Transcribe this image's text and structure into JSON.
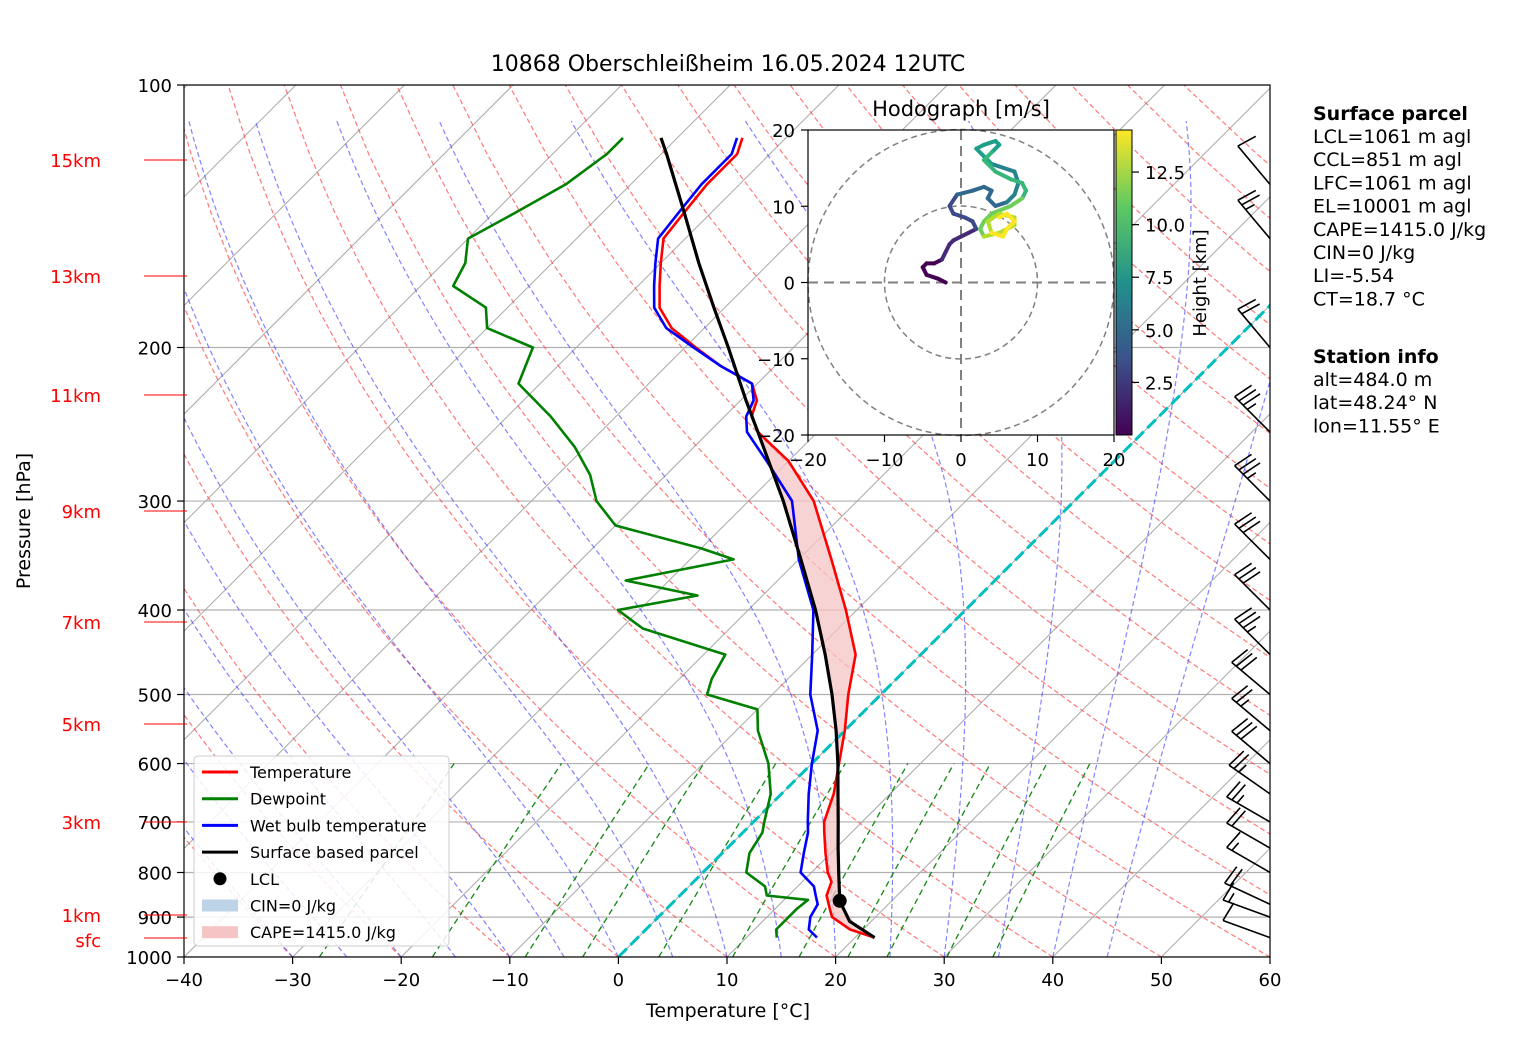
{
  "chart_data": [
    {
      "type": "line",
      "chart_kind": "skew-t log-p",
      "title": "10868 Oberschleißheim 16.05.2024 12UTC",
      "xlabel": "Temperature [°C]",
      "ylabel": "Pressure [hPa]",
      "xlim": [
        -40,
        60
      ],
      "ylim": [
        1000,
        100
      ],
      "y_scale": "log",
      "grid": true,
      "x_ticks": [
        "−40",
        "−30",
        "−20",
        "−10",
        "0",
        "10",
        "20",
        "30",
        "40",
        "50",
        "60"
      ],
      "y_ticks": [
        {
          "p": 100,
          "label": "100"
        },
        {
          "p": 200,
          "label": "200"
        },
        {
          "p": 300,
          "label": "300"
        },
        {
          "p": 400,
          "label": "400"
        },
        {
          "p": 500,
          "label": "500"
        },
        {
          "p": 600,
          "label": "600"
        },
        {
          "p": 700,
          "label": "700"
        },
        {
          "p": 800,
          "label": "800"
        },
        {
          "p": 900,
          "label": "900"
        },
        {
          "p": 1000,
          "label": "1000"
        }
      ],
      "height_labels": [
        {
          "p": 145,
          "label": "15km"
        },
        {
          "p": 170,
          "label": "13km"
        },
        {
          "p": 200,
          "label": "11km"
        },
        {
          "p": 300,
          "label": "9km"
        },
        {
          "p": 400,
          "label": "7km"
        },
        {
          "p": 540,
          "label": "5km"
        },
        {
          "p": 700,
          "label": "3km"
        },
        {
          "p": 880,
          "label": "1km"
        },
        {
          "p": 950,
          "label": "sfc"
        }
      ],
      "legend_position": "lower-left",
      "legend": [
        {
          "label": "Temperature",
          "color": "#ff0000",
          "kind": "line"
        },
        {
          "label": "Dewpoint",
          "color": "#008000",
          "kind": "line"
        },
        {
          "label": "Wet bulb temperature",
          "color": "#0000ff",
          "kind": "line"
        },
        {
          "label": "Surface based parcel",
          "color": "#000000",
          "kind": "line"
        },
        {
          "label": "LCL",
          "color": "#000000",
          "kind": "dot"
        },
        {
          "label": "CIN=0 J/kg",
          "color": "#bcd3e8",
          "kind": "patch"
        },
        {
          "label": "CAPE=1415.0 J/kg",
          "color": "#f5c4c4",
          "kind": "patch"
        }
      ],
      "series": [
        {
          "name": "Temperature",
          "color": "#ff0000",
          "points": [
            [
              950,
              21.8
            ],
            [
              930,
              18.8
            ],
            [
              900,
              16
            ],
            [
              880,
              15
            ],
            [
              850,
              13.5
            ],
            [
              820,
              12.7
            ],
            [
              800,
              11.5
            ],
            [
              760,
              9.5
            ],
            [
              720,
              7.5
            ],
            [
              700,
              6.5
            ],
            [
              650,
              4.8
            ],
            [
              600,
              2.5
            ],
            [
              550,
              0
            ],
            [
              500,
              -3
            ],
            [
              450,
              -6
            ],
            [
              400,
              -11
            ],
            [
              350,
              -17
            ],
            [
              300,
              -24
            ],
            [
              270,
              -30
            ],
            [
              250,
              -35.5
            ],
            [
              240,
              -37.5
            ],
            [
              230,
              -38.5
            ],
            [
              220,
              -40.5
            ],
            [
              210,
              -45
            ],
            [
              200,
              -49
            ],
            [
              190,
              -53
            ],
            [
              180,
              -56
            ],
            [
              170,
              -58
            ],
            [
              160,
              -60
            ],
            [
              150,
              -62
            ],
            [
              140,
              -62.5
            ],
            [
              130,
              -63
            ],
            [
              120,
              -63
            ],
            [
              115,
              -64
            ]
          ]
        },
        {
          "name": "Dewpoint",
          "color": "#008000",
          "points": [
            [
              950,
              12.8
            ],
            [
              930,
              12
            ],
            [
              900,
              12
            ],
            [
              880,
              12
            ],
            [
              860,
              12.2
            ],
            [
              850,
              8
            ],
            [
              830,
              7
            ],
            [
              800,
              4
            ],
            [
              760,
              2.5
            ],
            [
              720,
              1.8
            ],
            [
              700,
              1
            ],
            [
              650,
              -1
            ],
            [
              600,
              -4
            ],
            [
              550,
              -8
            ],
            [
              520,
              -10
            ],
            [
              500,
              -16
            ],
            [
              480,
              -17
            ],
            [
              450,
              -18
            ],
            [
              420,
              -28
            ],
            [
              400,
              -32
            ],
            [
              385,
              -26
            ],
            [
              370,
              -34
            ],
            [
              350,
              -26
            ],
            [
              340,
              -30
            ],
            [
              320,
              -40
            ],
            [
              300,
              -44
            ],
            [
              280,
              -47
            ],
            [
              260,
              -51
            ],
            [
              240,
              -56
            ],
            [
              220,
              -62
            ],
            [
              200,
              -64
            ],
            [
              190,
              -70
            ],
            [
              180,
              -72
            ],
            [
              170,
              -77
            ],
            [
              160,
              -78
            ],
            [
              150,
              -80
            ],
            [
              140,
              -78
            ],
            [
              130,
              -76
            ],
            [
              120,
              -75
            ],
            [
              115,
              -75
            ]
          ]
        },
        {
          "name": "Wet bulb temperature",
          "color": "#0000ff",
          "points": [
            [
              950,
              16.5
            ],
            [
              930,
              15
            ],
            [
              900,
              14
            ],
            [
              870,
              13.5
            ],
            [
              850,
              12.5
            ],
            [
              830,
              11.5
            ],
            [
              800,
              9
            ],
            [
              760,
              7.5
            ],
            [
              720,
              6
            ],
            [
              700,
              5
            ],
            [
              650,
              2.5
            ],
            [
              600,
              0
            ],
            [
              550,
              -2.5
            ],
            [
              500,
              -6.5
            ],
            [
              450,
              -10
            ],
            [
              400,
              -14
            ],
            [
              350,
              -20
            ],
            [
              300,
              -26
            ],
            [
              270,
              -32
            ],
            [
              250,
              -36.5
            ],
            [
              240,
              -38
            ],
            [
              230,
              -38.8
            ],
            [
              220,
              -40.5
            ],
            [
              210,
              -45
            ],
            [
              200,
              -49.2
            ],
            [
              190,
              -53.5
            ],
            [
              180,
              -56.5
            ],
            [
              170,
              -58.5
            ],
            [
              160,
              -60.5
            ],
            [
              150,
              -62.5
            ],
            [
              140,
              -63
            ],
            [
              130,
              -63.5
            ],
            [
              120,
              -63.5
            ],
            [
              115,
              -64.5
            ]
          ]
        },
        {
          "name": "Surface based parcel",
          "color": "#000000",
          "points": [
            [
              950,
              21.8
            ],
            [
              910,
              18
            ],
            [
              862,
              15.2
            ],
            [
              800,
              12.5
            ],
            [
              750,
              10.2
            ],
            [
              700,
              7.8
            ],
            [
              650,
              5.2
            ],
            [
              600,
              2.4
            ],
            [
              550,
              -0.8
            ],
            [
              500,
              -4.5
            ],
            [
              450,
              -8.8
            ],
            [
              400,
              -13.8
            ],
            [
              350,
              -19.8
            ],
            [
              300,
              -26.8
            ],
            [
              250,
              -35.5
            ],
            [
              230,
              -39.5
            ],
            [
              200,
              -46
            ],
            [
              180,
              -51
            ],
            [
              160,
              -56.5
            ],
            [
              140,
              -62.5
            ],
            [
              120,
              -69.5
            ],
            [
              115,
              -71.5
            ]
          ]
        }
      ],
      "lcl": {
        "p": 862,
        "t": 15.2
      },
      "cape_region": {
        "p_bottom": 862,
        "p_top": 230
      },
      "isotherm_0": {
        "color": "#00bfbf",
        "t": 0
      },
      "wind_barbs": [
        {
          "p": 950,
          "speed_kt": 10,
          "dir_deg": 290
        },
        {
          "p": 900,
          "speed_kt": 15,
          "dir_deg": 290
        },
        {
          "p": 870,
          "speed_kt": 20,
          "dir_deg": 295
        },
        {
          "p": 800,
          "speed_kt": 15,
          "dir_deg": 300
        },
        {
          "p": 750,
          "speed_kt": 20,
          "dir_deg": 300
        },
        {
          "p": 700,
          "speed_kt": 25,
          "dir_deg": 300
        },
        {
          "p": 650,
          "speed_kt": 25,
          "dir_deg": 305
        },
        {
          "p": 600,
          "speed_kt": 30,
          "dir_deg": 310
        },
        {
          "p": 550,
          "speed_kt": 25,
          "dir_deg": 310
        },
        {
          "p": 500,
          "speed_kt": 30,
          "dir_deg": 310
        },
        {
          "p": 450,
          "speed_kt": 35,
          "dir_deg": 315
        },
        {
          "p": 400,
          "speed_kt": 30,
          "dir_deg": 315
        },
        {
          "p": 350,
          "speed_kt": 30,
          "dir_deg": 315
        },
        {
          "p": 300,
          "speed_kt": 35,
          "dir_deg": 315
        },
        {
          "p": 250,
          "speed_kt": 35,
          "dir_deg": 315
        },
        {
          "p": 200,
          "speed_kt": 20,
          "dir_deg": 320
        },
        {
          "p": 150,
          "speed_kt": 25,
          "dir_deg": 320
        },
        {
          "p": 130,
          "speed_kt": 10,
          "dir_deg": 320
        }
      ]
    },
    {
      "type": "scatter",
      "chart_kind": "hodograph",
      "title": "Hodograph [m/s]",
      "xlim": [
        -20,
        20
      ],
      "ylim": [
        -20,
        20
      ],
      "x_ticks": [
        "−20",
        "−10",
        "0",
        "10",
        "20"
      ],
      "y_ticks": [
        "−20",
        "−10",
        "0",
        "10",
        "20"
      ],
      "rings": [
        10,
        20
      ],
      "colorbar": {
        "label": "Height [km]",
        "range": [
          0,
          14.5
        ],
        "ticks": [
          {
            "v": 2.5,
            "label": "2.5"
          },
          {
            "v": 5.0,
            "label": "5.0"
          },
          {
            "v": 7.5,
            "label": "7.5"
          },
          {
            "v": 10.0,
            "label": "10.0"
          },
          {
            "v": 12.5,
            "label": "12.5"
          }
        ]
      },
      "path": [
        [
          -2,
          0
        ],
        [
          -3,
          0.5
        ],
        [
          -4.5,
          1
        ],
        [
          -5,
          2
        ],
        [
          -4.5,
          2.5
        ],
        [
          -3.5,
          2.5
        ],
        [
          -2.5,
          3
        ],
        [
          -2,
          4
        ],
        [
          -1.5,
          5
        ],
        [
          -1,
          5.5
        ],
        [
          0,
          6
        ],
        [
          1,
          6.5
        ],
        [
          2,
          7
        ],
        [
          1.5,
          8
        ],
        [
          0.5,
          8.5
        ],
        [
          -1,
          9
        ],
        [
          -1.5,
          10
        ],
        [
          -0.5,
          11.5
        ],
        [
          1.5,
          12
        ],
        [
          3,
          12.5
        ],
        [
          4,
          12
        ],
        [
          3.5,
          11
        ],
        [
          4.5,
          10
        ],
        [
          6,
          10.5
        ],
        [
          7,
          11.5
        ],
        [
          7.5,
          13
        ],
        [
          7,
          14.5
        ],
        [
          5.5,
          15
        ],
        [
          4,
          15.5
        ],
        [
          3,
          16.5
        ],
        [
          2,
          17.5
        ],
        [
          3,
          18
        ],
        [
          4.5,
          18.5
        ],
        [
          5,
          18
        ],
        [
          4,
          17
        ],
        [
          3,
          16
        ],
        [
          4.5,
          14.5
        ],
        [
          6.5,
          13.5
        ],
        [
          8,
          13
        ],
        [
          8.5,
          12
        ],
        [
          8,
          11
        ],
        [
          6.5,
          10
        ],
        [
          4,
          9
        ],
        [
          3,
          8
        ],
        [
          2.5,
          7
        ],
        [
          3,
          6
        ],
        [
          5,
          6.5
        ],
        [
          7,
          7.5
        ],
        [
          7,
          8.5
        ],
        [
          5,
          9
        ],
        [
          3.5,
          8
        ],
        [
          4,
          6.5
        ],
        [
          5.5,
          6
        ],
        [
          6,
          7
        ],
        [
          7,
          8
        ],
        [
          6,
          9
        ],
        [
          5,
          8.5
        ]
      ]
    }
  ],
  "info_panel": {
    "surface_title": "Surface parcel",
    "surface_lines": [
      "LCL=1061 m agl",
      "CCL=851 m agl",
      "LFC=1061 m agl",
      "EL=10001 m agl",
      "CAPE=1415.0 J/kg",
      "CIN=0 J/kg",
      "LI=-5.54",
      "CT=18.7 °C"
    ],
    "station_title": "Station info",
    "station_lines": [
      "alt=484.0 m",
      "lat=48.24° N",
      "lon=11.55° E"
    ]
  }
}
